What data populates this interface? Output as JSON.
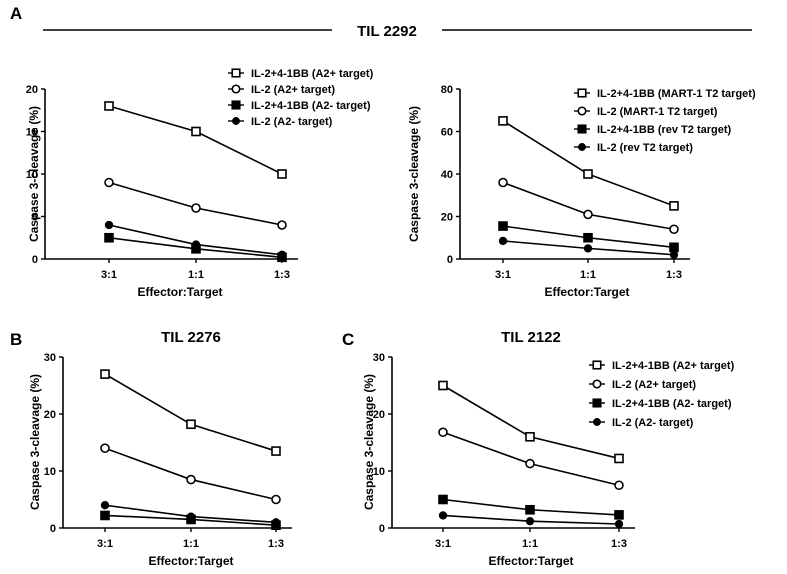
{
  "figure": {
    "banner_title": "TIL 2292",
    "panels": [
      {
        "letter": "A"
      },
      {
        "letter": "B"
      },
      {
        "letter": "C"
      }
    ]
  },
  "chart_data": [
    {
      "id": "A-left",
      "type": "line",
      "title": "",
      "xlabel": "Effector:Target",
      "ylabel": "Caspase 3-cleavage (%)",
      "categories": [
        "3:1",
        "1:1",
        "1:3"
      ],
      "ylim": [
        0,
        20
      ],
      "yticks": [
        0,
        5,
        10,
        15,
        20
      ],
      "legend_position": "top",
      "series": [
        {
          "name": "IL-2+4-1BB (A2+ target)",
          "marker": "open-square",
          "values": [
            18,
            15,
            10
          ]
        },
        {
          "name": "IL-2 (A2+ target)",
          "marker": "open-circle",
          "values": [
            9,
            6,
            4
          ]
        },
        {
          "name": "IL-2+4-1BB (A2- target)",
          "marker": "filled-square",
          "values": [
            2.5,
            1.2,
            0.2
          ]
        },
        {
          "name": "IL-2 (A2- target)",
          "marker": "filled-circle",
          "values": [
            4,
            1.7,
            0.5
          ]
        }
      ]
    },
    {
      "id": "A-right",
      "type": "line",
      "title": "",
      "xlabel": "Effector:Target",
      "ylabel": "Caspase 3-cleavage (%)",
      "categories": [
        "3:1",
        "1:1",
        "1:3"
      ],
      "ylim": [
        0,
        80
      ],
      "yticks": [
        0,
        20,
        40,
        60,
        80
      ],
      "legend_position": "top-right",
      "series": [
        {
          "name": "IL-2+4-1BB (MART-1 T2 target)",
          "marker": "open-square",
          "values": [
            65,
            40,
            25
          ]
        },
        {
          "name": "IL-2 (MART-1 T2 target)",
          "marker": "open-circle",
          "values": [
            36,
            21,
            14
          ]
        },
        {
          "name": "IL-2+4-1BB (rev T2 target)",
          "marker": "filled-square",
          "values": [
            15.5,
            10,
            5.5
          ]
        },
        {
          "name": "IL-2 (rev T2 target)",
          "marker": "filled-circle",
          "values": [
            8.5,
            5,
            2
          ]
        }
      ]
    },
    {
      "id": "B",
      "type": "line",
      "title": "TIL 2276",
      "xlabel": "Effector:Target",
      "ylabel": "Caspase 3-cleavage (%)",
      "categories": [
        "3:1",
        "1:1",
        "1:3"
      ],
      "ylim": [
        0,
        30
      ],
      "yticks": [
        0,
        10,
        20,
        30
      ],
      "legend_position": "none",
      "series": [
        {
          "name": "IL-2+4-1BB (A2+ target)",
          "marker": "open-square",
          "values": [
            27,
            18.2,
            13.5
          ]
        },
        {
          "name": "IL-2 (A2+ target)",
          "marker": "open-circle",
          "values": [
            14,
            8.5,
            5
          ]
        },
        {
          "name": "IL-2+4-1BB (A2- target)",
          "marker": "filled-square",
          "values": [
            2.2,
            1.5,
            0.5
          ]
        },
        {
          "name": "IL-2 (A2- target)",
          "marker": "filled-circle",
          "values": [
            4,
            2,
            1
          ]
        }
      ]
    },
    {
      "id": "C",
      "type": "line",
      "title": "TIL 2122",
      "xlabel": "Effector:Target",
      "ylabel": "Caspase 3-cleavage (%)",
      "categories": [
        "3:1",
        "1:1",
        "1:3"
      ],
      "ylim": [
        0,
        30
      ],
      "yticks": [
        0,
        10,
        20,
        30
      ],
      "legend_position": "right",
      "series": [
        {
          "name": "IL-2+4-1BB (A2+ target)",
          "marker": "open-square",
          "values": [
            25,
            16,
            12.2
          ]
        },
        {
          "name": "IL-2 (A2+ target)",
          "marker": "open-circle",
          "values": [
            16.8,
            11.3,
            7.5
          ]
        },
        {
          "name": "IL-2+4-1BB (A2- target)",
          "marker": "filled-square",
          "values": [
            5,
            3.2,
            2.3
          ]
        },
        {
          "name": "IL-2 (A2- target)",
          "marker": "filled-circle",
          "values": [
            2.2,
            1.2,
            0.7
          ]
        }
      ]
    }
  ]
}
